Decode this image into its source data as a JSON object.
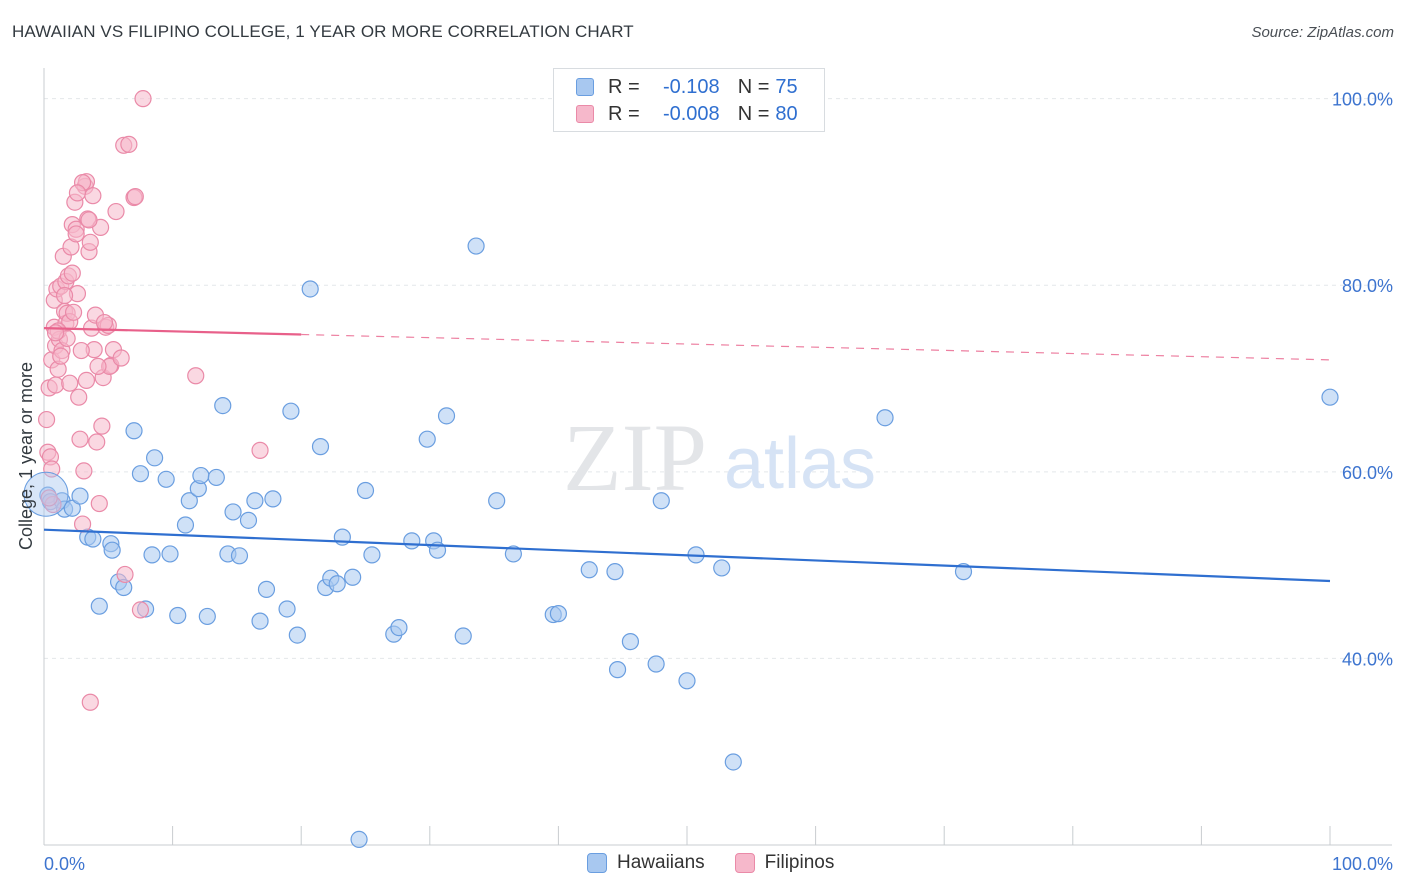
{
  "title": "HAWAIIAN VS FILIPINO COLLEGE, 1 YEAR OR MORE CORRELATION CHART",
  "source": "Source: ZipAtlas.com",
  "watermark": {
    "zip": "ZIP",
    "atlas": "atlas"
  },
  "legend": {
    "r_label": "R =",
    "n_label": "N =",
    "series": [
      {
        "r": "-0.108",
        "n": "75"
      },
      {
        "r": "-0.008",
        "n": "80"
      }
    ]
  },
  "colors": {
    "blue_fill": "#a8c8f0",
    "blue_stroke": "#6a9ee0",
    "blue_line": "#2f6fd0",
    "pink_fill": "#f6b8cb",
    "pink_stroke": "#ea8aa8",
    "pink_line": "#e8608a",
    "axis_text": "#3d74cf",
    "grid": "#e4e7ea"
  },
  "chart_data": {
    "type": "scatter",
    "title": "HAWAIIAN VS FILIPINO COLLEGE, 1 YEAR OR MORE CORRELATION CHART",
    "xlabel": "",
    "ylabel": "College, 1 year or more",
    "xlim": [
      0,
      100
    ],
    "ylim": [
      20,
      102
    ],
    "x_tick_labels": [
      "0.0%",
      "100.0%"
    ],
    "y_tick_labels": [
      "40.0%",
      "60.0%",
      "80.0%",
      "100.0%"
    ],
    "y_ticks": [
      40,
      60,
      80,
      100
    ],
    "grid": true,
    "legend_position": "top-center",
    "series": [
      {
        "name": "Hawaiians",
        "color": "#a8c8f0",
        "trend": {
          "x0": 0,
          "y0": 53.8,
          "x1": 100,
          "y1": 48.3,
          "dashed_from": null
        },
        "points": [
          [
            0.3,
            57.5
          ],
          [
            0.5,
            56.8
          ],
          [
            1.4,
            56.9
          ],
          [
            1.6,
            56.0
          ],
          [
            2.2,
            56.1
          ],
          [
            2.8,
            57.4
          ],
          [
            3.4,
            53.0
          ],
          [
            3.8,
            52.8
          ],
          [
            4.3,
            45.6
          ],
          [
            5.2,
            52.3
          ],
          [
            5.3,
            51.6
          ],
          [
            5.8,
            48.2
          ],
          [
            6.2,
            47.6
          ],
          [
            7.0,
            64.4
          ],
          [
            7.5,
            59.8
          ],
          [
            7.9,
            45.3
          ],
          [
            8.4,
            51.1
          ],
          [
            8.6,
            61.5
          ],
          [
            9.5,
            59.2
          ],
          [
            9.8,
            51.2
          ],
          [
            10.4,
            44.6
          ],
          [
            11.0,
            54.3
          ],
          [
            11.3,
            56.9
          ],
          [
            12.0,
            58.2
          ],
          [
            12.2,
            59.6
          ],
          [
            12.7,
            44.5
          ],
          [
            13.4,
            59.4
          ],
          [
            13.9,
            67.1
          ],
          [
            14.3,
            51.2
          ],
          [
            14.7,
            55.7
          ],
          [
            15.2,
            51.0
          ],
          [
            15.9,
            54.8
          ],
          [
            16.4,
            56.9
          ],
          [
            16.8,
            44.0
          ],
          [
            17.3,
            47.4
          ],
          [
            17.8,
            57.1
          ],
          [
            18.9,
            45.3
          ],
          [
            19.2,
            66.5
          ],
          [
            19.7,
            42.5
          ],
          [
            20.7,
            79.6
          ],
          [
            21.5,
            62.7
          ],
          [
            21.9,
            47.6
          ],
          [
            22.3,
            48.6
          ],
          [
            22.8,
            48.0
          ],
          [
            23.2,
            53.0
          ],
          [
            24.0,
            48.7
          ],
          [
            24.5,
            20.6
          ],
          [
            25.0,
            58.0
          ],
          [
            25.5,
            51.1
          ],
          [
            27.2,
            42.6
          ],
          [
            27.6,
            43.3
          ],
          [
            28.6,
            52.6
          ],
          [
            29.8,
            63.5
          ],
          [
            30.3,
            52.6
          ],
          [
            30.6,
            51.6
          ],
          [
            31.3,
            66.0
          ],
          [
            32.6,
            42.4
          ],
          [
            33.6,
            84.2
          ],
          [
            35.2,
            56.9
          ],
          [
            36.5,
            51.2
          ],
          [
            39.6,
            44.7
          ],
          [
            40.0,
            44.8
          ],
          [
            42.4,
            49.5
          ],
          [
            44.4,
            49.3
          ],
          [
            44.6,
            38.8
          ],
          [
            45.6,
            41.8
          ],
          [
            47.6,
            39.4
          ],
          [
            48.0,
            56.9
          ],
          [
            50.0,
            37.6
          ],
          [
            50.7,
            51.1
          ],
          [
            52.7,
            49.7
          ],
          [
            53.6,
            28.9
          ],
          [
            65.4,
            65.8
          ],
          [
            71.5,
            49.3
          ],
          [
            100.0,
            68.0
          ]
        ]
      },
      {
        "name": "Filipinos",
        "color": "#f6b8cb",
        "trend": {
          "x0": 0,
          "y0": 75.4,
          "x1": 100,
          "y1": 72.0,
          "dashed_from": 20
        },
        "points": [
          [
            0.2,
            65.6
          ],
          [
            0.3,
            62.1
          ],
          [
            0.4,
            69.0
          ],
          [
            0.5,
            61.6
          ],
          [
            0.6,
            72.0
          ],
          [
            0.7,
            56.5
          ],
          [
            0.8,
            75.5
          ],
          [
            0.8,
            78.4
          ],
          [
            0.9,
            73.5
          ],
          [
            1.0,
            79.6
          ],
          [
            1.1,
            71.0
          ],
          [
            1.2,
            74.2
          ],
          [
            1.3,
            79.9
          ],
          [
            1.5,
            83.1
          ],
          [
            1.6,
            77.2
          ],
          [
            1.7,
            80.4
          ],
          [
            1.7,
            75.9
          ],
          [
            1.8,
            77.0
          ],
          [
            1.9,
            81.0
          ],
          [
            2.0,
            76.1
          ],
          [
            2.1,
            84.1
          ],
          [
            2.2,
            86.5
          ],
          [
            2.3,
            77.1
          ],
          [
            2.4,
            88.9
          ],
          [
            2.5,
            86.0
          ],
          [
            2.6,
            79.1
          ],
          [
            2.7,
            68.0
          ],
          [
            2.8,
            63.5
          ],
          [
            3.0,
            54.4
          ],
          [
            3.1,
            60.1
          ],
          [
            3.2,
            90.6
          ],
          [
            3.3,
            91.1
          ],
          [
            3.4,
            87.1
          ],
          [
            3.5,
            83.6
          ],
          [
            3.6,
            84.6
          ],
          [
            3.7,
            75.4
          ],
          [
            3.8,
            89.6
          ],
          [
            3.9,
            73.1
          ],
          [
            4.1,
            63.2
          ],
          [
            4.3,
            56.6
          ],
          [
            4.4,
            86.2
          ],
          [
            4.5,
            64.9
          ],
          [
            4.6,
            70.1
          ],
          [
            4.8,
            75.5
          ],
          [
            5.0,
            75.7
          ],
          [
            5.2,
            71.4
          ],
          [
            5.4,
            73.1
          ],
          [
            5.6,
            87.9
          ],
          [
            6.2,
            95.0
          ],
          [
            6.3,
            49.0
          ],
          [
            6.6,
            95.1
          ],
          [
            7.0,
            89.4
          ],
          [
            7.1,
            89.5
          ],
          [
            7.5,
            45.2
          ],
          [
            7.7,
            100.0
          ],
          [
            11.8,
            70.3
          ],
          [
            16.8,
            62.3
          ],
          [
            3.6,
            35.3
          ],
          [
            0.4,
            57.2
          ],
          [
            0.9,
            69.3
          ],
          [
            1.4,
            73.0
          ],
          [
            2.0,
            69.5
          ],
          [
            2.5,
            85.5
          ],
          [
            1.1,
            75.1
          ],
          [
            3.3,
            69.8
          ],
          [
            4.0,
            76.8
          ],
          [
            5.1,
            71.3
          ],
          [
            2.9,
            73.0
          ],
          [
            1.8,
            74.3
          ],
          [
            0.6,
            60.3
          ],
          [
            2.2,
            81.3
          ],
          [
            3.0,
            91.0
          ],
          [
            1.3,
            72.4
          ],
          [
            4.2,
            71.3
          ],
          [
            0.9,
            74.9
          ],
          [
            2.6,
            89.9
          ],
          [
            3.5,
            87.0
          ],
          [
            1.6,
            78.9
          ],
          [
            4.7,
            76.0
          ],
          [
            6.0,
            72.2
          ]
        ]
      }
    ]
  },
  "bottom_legend": [
    "Hawaiians",
    "Filipinos"
  ]
}
